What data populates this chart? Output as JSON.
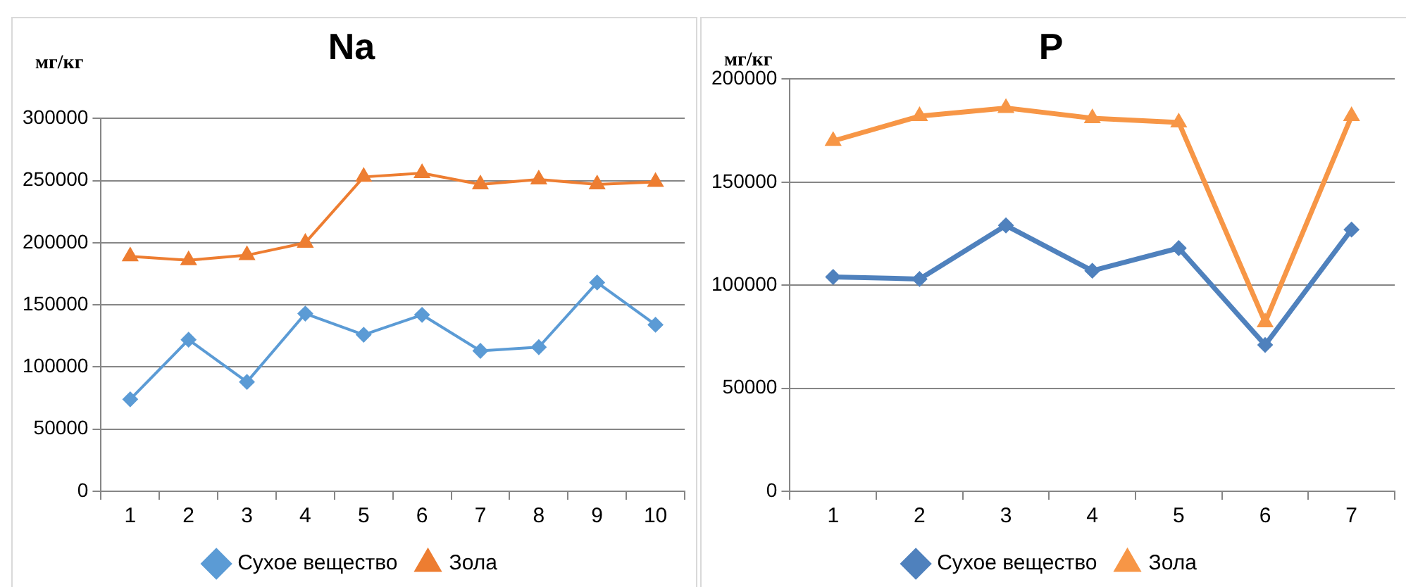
{
  "chart_data": [
    {
      "type": "line",
      "title": "Na",
      "ylabel": "мг/кг",
      "categories": [
        "1",
        "2",
        "3",
        "4",
        "5",
        "6",
        "7",
        "8",
        "9",
        "10"
      ],
      "series": [
        {
          "name": "Сухое вещество",
          "color": "#5b9bd5",
          "marker": "diamond",
          "values": [
            74000,
            122000,
            88000,
            143000,
            126000,
            142000,
            113000,
            116000,
            168000,
            134000
          ]
        },
        {
          "name": "Зола",
          "color": "#ed7d31",
          "marker": "triangle",
          "values": [
            189000,
            186000,
            190000,
            200000,
            253000,
            256000,
            247000,
            251000,
            247000,
            249000
          ]
        }
      ],
      "ylim": [
        0,
        300000
      ],
      "yticks": [
        0,
        50000,
        100000,
        150000,
        200000,
        250000,
        300000
      ],
      "grid": "y",
      "legend": "bottom"
    },
    {
      "type": "line",
      "title": "P",
      "ylabel": "мг/кг",
      "categories": [
        "1",
        "2",
        "3",
        "4",
        "5",
        "6",
        "7"
      ],
      "series": [
        {
          "name": "Сухое вещество",
          "color": "#4f81bd",
          "marker": "diamond",
          "values": [
            104000,
            103000,
            129000,
            107000,
            118000,
            71000,
            127000
          ]
        },
        {
          "name": "Зола",
          "color": "#f79646",
          "marker": "triangle",
          "values": [
            170000,
            182000,
            186000,
            181000,
            179000,
            82000,
            182000
          ]
        }
      ],
      "ylim": [
        0,
        200000
      ],
      "yticks": [
        0,
        50000,
        100000,
        150000,
        200000
      ],
      "grid": "y",
      "legend": "bottom"
    }
  ]
}
